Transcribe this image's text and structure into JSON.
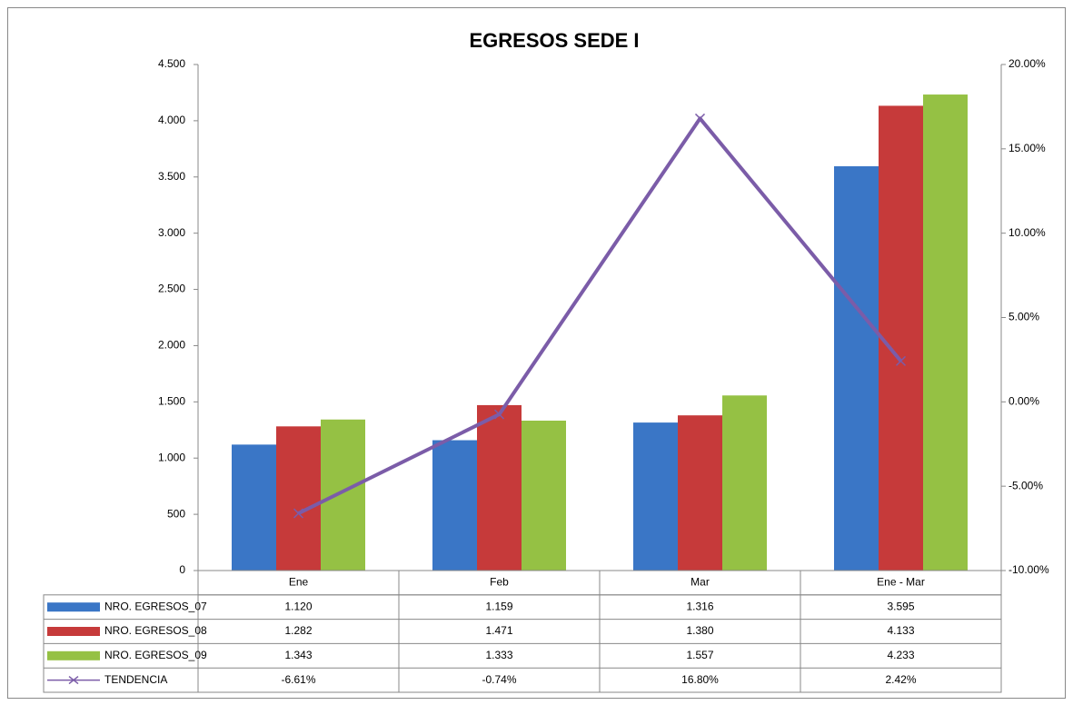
{
  "chart_data": {
    "type": "bar",
    "title": "EGRESOS SEDE I",
    "categories": [
      "Ene",
      "Feb",
      "Mar",
      "Ene - Mar"
    ],
    "series": [
      {
        "name": "NRO. EGRESOS_07",
        "color": "#3a76c6",
        "values": [
          1120,
          1159,
          1316,
          3595
        ],
        "value_labels": [
          "1.120",
          "1.159",
          "1.316",
          "3.595"
        ]
      },
      {
        "name": "NRO. EGRESOS_08",
        "color": "#c63a3a",
        "values": [
          1282,
          1471,
          1380,
          4133
        ],
        "value_labels": [
          "1.282",
          "1.471",
          "1.380",
          "4.133"
        ]
      },
      {
        "name": "NRO. EGRESOS_09",
        "color": "#95c144",
        "values": [
          1343,
          1333,
          1557,
          4233
        ],
        "value_labels": [
          "1.343",
          "1.333",
          "1.557",
          "4.233"
        ]
      },
      {
        "name": "TENDENCIA",
        "type": "line",
        "axis": "y2",
        "color": "#7b5ca8",
        "values": [
          -6.61,
          -0.74,
          16.8,
          2.42
        ],
        "value_labels": [
          "-6.61%",
          "-0.74%",
          "16.80%",
          "2.42%"
        ]
      }
    ],
    "ylim": [
      0,
      4500
    ],
    "yticks": [
      0,
      500,
      {
        "value": 1000,
        "label": "1.000"
      },
      {
        "value": 1500,
        "label": "1.500"
      },
      {
        "value": 2000,
        "label": "2.000"
      },
      {
        "value": 2500,
        "label": "2.500"
      },
      {
        "value": 3000,
        "label": "3.000"
      },
      {
        "value": 3500,
        "label": "3.500"
      },
      {
        "value": 4000,
        "label": "4.000"
      },
      {
        "value": 4500,
        "label": "4.500"
      }
    ],
    "y2lim": [
      -10,
      20
    ],
    "y2ticks": [
      {
        "value": -10,
        "label": "-10.00%"
      },
      {
        "value": -5,
        "label": "-5.00%"
      },
      {
        "value": 0,
        "label": "0.00%"
      },
      {
        "value": 5,
        "label": "5.00%"
      },
      {
        "value": 10,
        "label": "10.00%"
      },
      {
        "value": 15,
        "label": "15.00%"
      },
      {
        "value": 20,
        "label": "20.00%"
      }
    ],
    "grid": false
  }
}
